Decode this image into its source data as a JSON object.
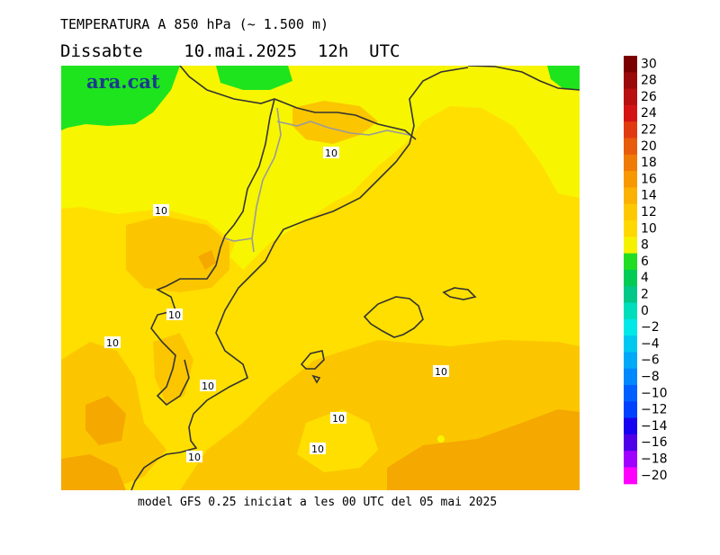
{
  "header": {
    "title": "TEMPERATURA A 850 hPa (~ 1.500 m)",
    "subtitle": "Dissabte    10.mai.2025  12h  UTC"
  },
  "footer": {
    "model_info": "model GFS 0.25 iniciat a les 00 UTC del 05 mai 2025"
  },
  "map": {
    "brand": "ara.cat",
    "contour_label": "10",
    "colors": {
      "green": "#1ee41e",
      "yellow": "#f7f500",
      "light_orange": "#ffdf00",
      "orange": "#fbc600",
      "deep_orange": "#f5a800",
      "coast": "#333333",
      "border": "#9a9a9a"
    }
  },
  "colorbar": {
    "labels": [
      "30",
      "28",
      "26",
      "24",
      "22",
      "20",
      "18",
      "16",
      "14",
      "12",
      "10",
      "8",
      "6",
      "4",
      "2",
      "0",
      "-2",
      "-4",
      "-6",
      "-8",
      "-10",
      "-12",
      "-14",
      "-16",
      "-18",
      "-20"
    ],
    "colors": [
      "#7a0000",
      "#9a0a0a",
      "#b81010",
      "#d41414",
      "#e23a10",
      "#e85a0c",
      "#f07a06",
      "#f89800",
      "#fcb000",
      "#fec800",
      "#ffd800",
      "#f4f200",
      "#22dd22",
      "#00cc55",
      "#00c888",
      "#00ddbb",
      "#00e8e8",
      "#00c8f0",
      "#00a8f8",
      "#0088ff",
      "#0060ff",
      "#0040ff",
      "#1800f0",
      "#5000e8",
      "#a000ff",
      "#ff00ff"
    ]
  }
}
